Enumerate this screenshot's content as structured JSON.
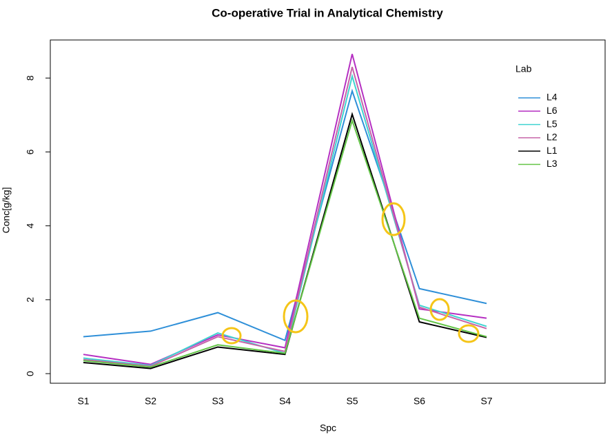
{
  "chart_data": {
    "type": "line",
    "title": "Co-operative Trial in Analytical Chemistry",
    "x_label": "Spc",
    "y_label": "Conc[g/kg]",
    "categories": [
      "S1",
      "S2",
      "S3",
      "S4",
      "S5",
      "S6",
      "S7"
    ],
    "series": [
      {
        "name": "L4",
        "color": "#2e8fd8",
        "values": [
          1.0,
          1.15,
          1.65,
          0.9,
          7.65,
          2.3,
          1.9
        ]
      },
      {
        "name": "L6",
        "color": "#b52fc2",
        "values": [
          0.52,
          0.25,
          1.05,
          0.7,
          8.65,
          1.75,
          1.5
        ]
      },
      {
        "name": "L5",
        "color": "#3fd3d0",
        "values": [
          0.42,
          0.22,
          1.1,
          0.55,
          8.05,
          1.85,
          1.28
        ]
      },
      {
        "name": "L2",
        "color": "#c665a8",
        "values": [
          0.38,
          0.2,
          1.0,
          0.6,
          8.3,
          1.8,
          1.22
        ]
      },
      {
        "name": "L1",
        "color": "#000000",
        "values": [
          0.3,
          0.14,
          0.72,
          0.52,
          7.02,
          1.4,
          0.98
        ]
      },
      {
        "name": "L3",
        "color": "#62c446",
        "values": [
          0.35,
          0.18,
          0.78,
          0.55,
          6.85,
          1.5,
          1.0
        ]
      }
    ],
    "legend_title": "Lab",
    "legend": "top-right",
    "ylim": [
      -0.26,
      9.03
    ],
    "yticks": [
      0,
      2,
      4,
      6,
      8
    ]
  }
}
